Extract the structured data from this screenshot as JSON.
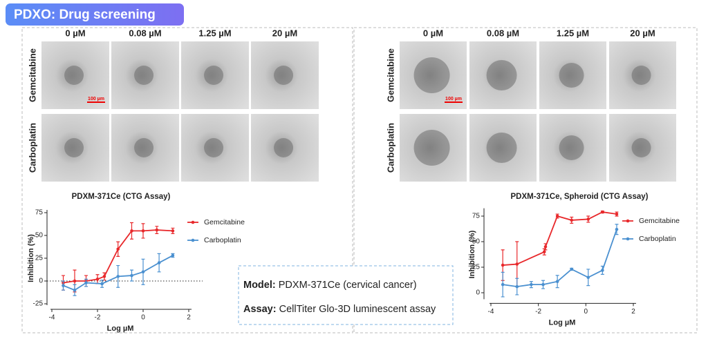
{
  "header": {
    "title": "PDXO: Drug screening"
  },
  "panels": [
    {
      "concentrations": [
        "0 µM",
        "0.08 µM",
        "1.25 µM",
        "20 µM"
      ],
      "rows": [
        "Gemcitabine",
        "Carboplatin"
      ],
      "scale_bar": "100 µm"
    },
    {
      "concentrations": [
        "0 µM",
        "0.08 µM",
        "1.25 µM",
        "20 µM"
      ],
      "rows": [
        "Gemcitabine",
        "Carboplatin"
      ],
      "scale_bar": "100 µm"
    }
  ],
  "chart_data": [
    {
      "type": "line",
      "title": "PDXM-371Ce (CTG Assay)",
      "x_label": "Log µM",
      "y_label": "Inhibition (%)",
      "xlim": [
        -4,
        2
      ],
      "ylim": [
        -25,
        75
      ],
      "xticks": [
        -4,
        -2,
        0,
        2
      ],
      "yticks": [
        -25,
        0,
        25,
        50,
        75
      ],
      "zero_line": true,
      "legend": "upper right",
      "series": [
        {
          "name": "Gemcitabine",
          "color": "#e8282b",
          "x": [
            -3.5,
            -3,
            -2.5,
            -2,
            -1.7,
            -1.1,
            -0.5,
            0,
            0.6,
            1.3
          ],
          "values": [
            -2,
            0,
            0,
            2,
            5,
            35,
            55,
            55,
            56,
            55
          ],
          "errors": [
            8,
            12,
            6,
            5,
            4,
            8,
            9,
            8,
            4,
            3
          ]
        },
        {
          "name": "Carboplatin",
          "color": "#4a90d0",
          "x": [
            -3.5,
            -3,
            -2.5,
            -1.8,
            -1.1,
            -0.5,
            0,
            0.7,
            1.3
          ],
          "values": [
            -5,
            -10,
            -2,
            -3,
            5,
            6,
            10,
            20,
            28
          ],
          "errors": [
            5,
            6,
            4,
            4,
            12,
            6,
            14,
            10,
            2
          ]
        }
      ]
    },
    {
      "type": "line",
      "title": "PDXM-371Ce, Spheroid (CTG Assay)",
      "x_label": "Log µM",
      "y_label": "Inhibition (%)",
      "xlim": [
        -4,
        2
      ],
      "ylim": [
        -5,
        80
      ],
      "xticks": [
        -4,
        -2,
        0,
        2
      ],
      "yticks": [
        0,
        25,
        50,
        75
      ],
      "zero_line": false,
      "legend": "upper right",
      "series": [
        {
          "name": "Gemcitabine",
          "color": "#e8282b",
          "x": [
            -3.5,
            -2.9,
            -1.75,
            -1.7,
            -1.2,
            -0.6,
            0.1,
            0.7,
            1.3
          ],
          "values": [
            27,
            28,
            40,
            45,
            75,
            71,
            72,
            79,
            77
          ],
          "errors": [
            15,
            22,
            3,
            3,
            2,
            3,
            3,
            1,
            2
          ]
        },
        {
          "name": "Carboplatin",
          "color": "#4a90d0",
          "x": [
            -3.5,
            -2.9,
            -2.3,
            -1.8,
            -1.2,
            -0.6,
            0.1,
            0.7,
            1.3
          ],
          "values": [
            8,
            6,
            8,
            8,
            11,
            23,
            15,
            22,
            62
          ],
          "errors": [
            12,
            8,
            3,
            4,
            6,
            1,
            8,
            4,
            5
          ]
        }
      ]
    }
  ],
  "info": {
    "model_label": "Model:",
    "model": "PDXM-371Ce (cervical cancer)",
    "assay_label": "Assay:",
    "assay": "CellTiter Glo-3D luminescent assay"
  }
}
